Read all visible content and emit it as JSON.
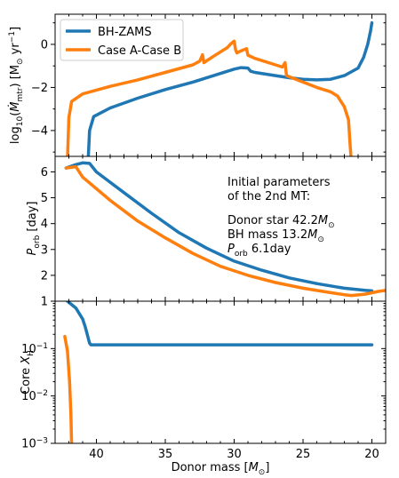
{
  "chart_data": [
    {
      "type": "line",
      "panel": "mass-transfer-rate",
      "ylabel_parts": {
        "pre": "log",
        "sub10": "10",
        "open": "(",
        "mdot": "Ṁ",
        "sub": "mtr",
        "units": ") [M",
        "sun": "⊙",
        "yr": " yr",
        "sup": "−1",
        "close": "]"
      },
      "ylim": [
        -5.2,
        1.4
      ],
      "yticks": [
        0,
        -2,
        -4
      ],
      "ytick_labels": [
        "0",
        "−2",
        "−4"
      ],
      "legend": {
        "placement": "top-left",
        "entries": [
          "BH-ZAMS",
          "Case A-Case B"
        ]
      },
      "series": [
        {
          "name": "BH-ZAMS",
          "color": "#1f77b4",
          "points": [
            [
              40.6,
              -5.4
            ],
            [
              40.5,
              -4.0
            ],
            [
              40.2,
              -3.35
            ],
            [
              39.0,
              -2.95
            ],
            [
              37.0,
              -2.5
            ],
            [
              35.0,
              -2.1
            ],
            [
              33.0,
              -1.75
            ],
            [
              31.0,
              -1.35
            ],
            [
              30.0,
              -1.15
            ],
            [
              29.5,
              -1.08
            ],
            [
              29.0,
              -1.1
            ],
            [
              28.8,
              -1.25
            ],
            [
              28.5,
              -1.3
            ],
            [
              27.0,
              -1.45
            ],
            [
              26.0,
              -1.55
            ],
            [
              25.0,
              -1.62
            ],
            [
              24.0,
              -1.65
            ],
            [
              23.0,
              -1.62
            ],
            [
              22.0,
              -1.45
            ],
            [
              21.0,
              -1.1
            ],
            [
              20.6,
              -0.6
            ],
            [
              20.3,
              0.0
            ],
            [
              20.1,
              0.6
            ],
            [
              20.0,
              1.0
            ]
          ]
        },
        {
          "name": "Case A-Case B",
          "color": "#ff7f0e",
          "points": [
            [
              42.1,
              -5.4
            ],
            [
              42.0,
              -3.4
            ],
            [
              41.8,
              -2.65
            ],
            [
              41.0,
              -2.3
            ],
            [
              39.0,
              -1.95
            ],
            [
              37.0,
              -1.65
            ],
            [
              35.0,
              -1.3
            ],
            [
              33.0,
              -0.95
            ],
            [
              32.5,
              -0.78
            ],
            [
              32.3,
              -0.48
            ],
            [
              32.2,
              -0.85
            ],
            [
              31.5,
              -0.55
            ],
            [
              30.5,
              -0.15
            ],
            [
              30.2,
              0.05
            ],
            [
              30.0,
              0.15
            ],
            [
              29.9,
              -0.25
            ],
            [
              29.8,
              -0.4
            ],
            [
              29.5,
              -0.3
            ],
            [
              29.1,
              -0.2
            ],
            [
              29.0,
              -0.5
            ],
            [
              28.5,
              -0.65
            ],
            [
              27.0,
              -0.95
            ],
            [
              26.5,
              -1.05
            ],
            [
              26.3,
              -0.85
            ],
            [
              26.2,
              -1.45
            ],
            [
              25.0,
              -1.75
            ],
            [
              24.0,
              -2.0
            ],
            [
              23.0,
              -2.2
            ],
            [
              22.5,
              -2.4
            ],
            [
              22.0,
              -2.9
            ],
            [
              21.7,
              -3.5
            ],
            [
              21.6,
              -4.5
            ],
            [
              21.5,
              -5.4
            ]
          ]
        }
      ]
    },
    {
      "type": "line",
      "panel": "orbital-period",
      "ylabel_parts": {
        "p": "P",
        "sub": "orb",
        "rest": " [day]"
      },
      "ylim": [
        1.0,
        6.6
      ],
      "yticks": [
        6,
        5,
        4,
        3,
        2
      ],
      "ytick_labels": [
        "6",
        "5",
        "4",
        "3",
        "2"
      ],
      "annotation": {
        "line1": "Initial parameters",
        "line2": "of the 2nd MT:",
        "donor_label": "Donor star ",
        "donor_value": "42.2",
        "bh_label": "BH mass ",
        "bh_value": "13.2",
        "m": "M",
        "sun": "⊙",
        "p": "P",
        "p_sub": "orb",
        "p_value": " 6.1day"
      },
      "series": [
        {
          "name": "BH-ZAMS",
          "color": "#1f77b4",
          "points": [
            [
              42.2,
              6.15
            ],
            [
              41.5,
              6.28
            ],
            [
              41.0,
              6.35
            ],
            [
              40.5,
              6.33
            ],
            [
              40.0,
              6.0
            ],
            [
              38.0,
              5.2
            ],
            [
              36.0,
              4.4
            ],
            [
              34.0,
              3.65
            ],
            [
              32.0,
              3.05
            ],
            [
              30.0,
              2.55
            ],
            [
              28.0,
              2.2
            ],
            [
              26.0,
              1.9
            ],
            [
              24.0,
              1.68
            ],
            [
              22.0,
              1.5
            ],
            [
              20.5,
              1.42
            ],
            [
              20.0,
              1.4
            ]
          ]
        },
        {
          "name": "Case A-Case B",
          "color": "#ff7f0e",
          "points": [
            [
              42.2,
              6.15
            ],
            [
              41.5,
              6.2
            ],
            [
              41.0,
              5.8
            ],
            [
              39.0,
              4.9
            ],
            [
              37.0,
              4.1
            ],
            [
              35.0,
              3.45
            ],
            [
              33.0,
              2.85
            ],
            [
              31.0,
              2.35
            ],
            [
              29.0,
              2.0
            ],
            [
              27.0,
              1.72
            ],
            [
              25.0,
              1.5
            ],
            [
              23.0,
              1.33
            ],
            [
              22.0,
              1.25
            ],
            [
              21.5,
              1.22
            ],
            [
              20.5,
              1.27
            ],
            [
              19.5,
              1.38
            ],
            [
              19.0,
              1.42
            ]
          ]
        }
      ]
    },
    {
      "type": "line",
      "panel": "core-hydrogen",
      "ylabel_parts": {
        "core": "Core ",
        "x": "X",
        "sub": "H"
      },
      "yscale": "log",
      "ylim": [
        0.001,
        1.0
      ],
      "yticks": [
        1,
        0.1,
        0.01,
        0.001
      ],
      "ytick_labels": [
        {
          "base": "1",
          "sup": ""
        },
        {
          "base": "10",
          "sup": "−1"
        },
        {
          "base": "10",
          "sup": "−2"
        },
        {
          "base": "10",
          "sup": "−3"
        }
      ],
      "xlabel_parts": {
        "pre": "Donor mass [",
        "m": "M",
        "sun": "⊙",
        "post": "]"
      },
      "xlim": [
        43.0,
        19.0
      ],
      "xticks": [
        40,
        35,
        30,
        25,
        20
      ],
      "xtick_labels": [
        "40",
        "35",
        "30",
        "25",
        "20"
      ],
      "series": [
        {
          "name": "BH-ZAMS",
          "color": "#1f77b4",
          "points": [
            [
              42.1,
              1.0
            ],
            [
              41.5,
              0.72
            ],
            [
              41.0,
              0.42
            ],
            [
              40.8,
              0.28
            ],
            [
              40.5,
              0.13
            ],
            [
              40.4,
              0.12
            ],
            [
              38.0,
              0.12
            ],
            [
              30.0,
              0.12
            ],
            [
              25.0,
              0.12
            ],
            [
              20.0,
              0.12
            ]
          ]
        },
        {
          "name": "Case A-Case B",
          "color": "#ff7f0e",
          "points": [
            [
              42.3,
              0.18
            ],
            [
              42.1,
              0.09
            ],
            [
              41.95,
              0.02
            ],
            [
              41.85,
              0.004
            ],
            [
              41.8,
              0.0009
            ]
          ]
        }
      ]
    }
  ]
}
